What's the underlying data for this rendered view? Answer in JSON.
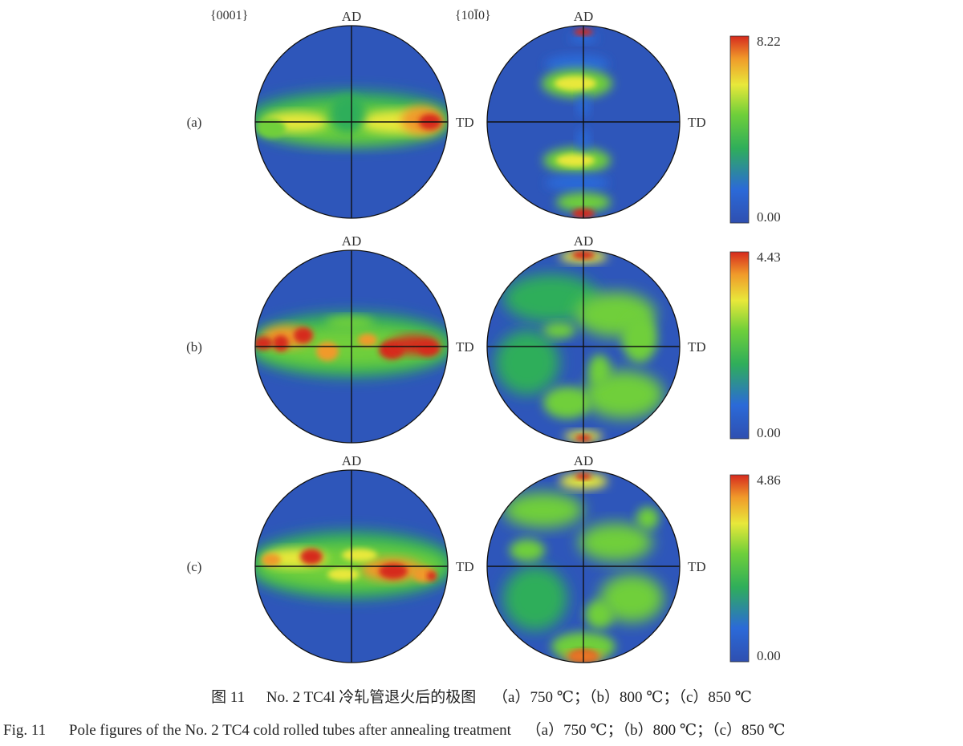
{
  "figure": {
    "plane_labels": [
      "{0001}",
      "{10Ī0}"
    ],
    "rows": [
      {
        "label": "(a)",
        "temperature": "750 ℃",
        "scale": {
          "max": "8.22",
          "min": "0.00"
        },
        "poles": [
          {
            "plane": "{0001}",
            "top_label": "",
            "right_label": "TD",
            "texture": "basal-band-750",
            "peak_intensity": 8.22
          },
          {
            "plane": "{10Ī0}",
            "top_label": "AD",
            "right_label": "TD",
            "texture": "prism-spots-750"
          }
        ]
      },
      {
        "label": "(b)",
        "temperature": "800 ℃",
        "scale": {
          "max": "4.43",
          "min": "0.00"
        },
        "poles": [
          {
            "plane": "{0001}",
            "top_label": "AD",
            "right_label": "TD",
            "texture": "basal-band-800",
            "peak_intensity": 4.43
          },
          {
            "plane": "{10Ī0}",
            "top_label": "AD",
            "right_label": "TD",
            "texture": "prism-diffuse-800"
          }
        ]
      },
      {
        "label": "(c)",
        "temperature": "850 ℃",
        "scale": {
          "max": "4.86",
          "min": "0.00"
        },
        "poles": [
          {
            "plane": "{0001}",
            "top_label": "AD",
            "right_label": "TD",
            "texture": "basal-band-850",
            "peak_intensity": 4.86
          },
          {
            "plane": "{10Ī0}",
            "top_label": "AD",
            "right_label": "TD",
            "texture": "prism-diffuse-850"
          }
        ]
      }
    ],
    "first_row_top_label": "AD",
    "colormap": [
      "#2f4fb0",
      "#2b6ad8",
      "#2fae5a",
      "#6fcf3a",
      "#e8e83a",
      "#f09a2a",
      "#d62a1e"
    ]
  },
  "caption": {
    "cn_prefix": "图 11",
    "cn_text": "No. 2 TC4l 冷轧管退火后的极图",
    "cn_conditions": "（a）750 ℃；（b）800 ℃；（c）850 ℃",
    "en_prefix": "Fig. 11",
    "en_text": "Pole figures of the No. 2 TC4 cold rolled tubes after annealing treatment",
    "en_conditions": "（a）750 ℃；（b）800 ℃；（c）850 ℃"
  }
}
